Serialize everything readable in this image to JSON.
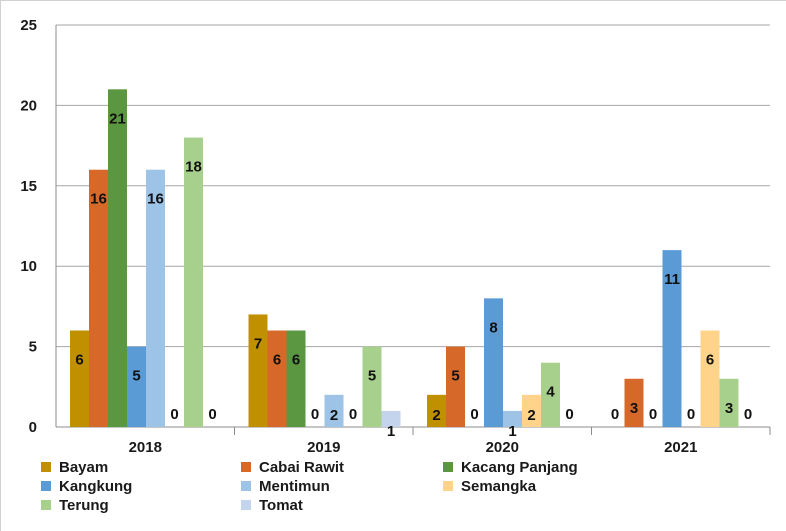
{
  "chart_data": {
    "type": "bar",
    "categories": [
      "2018",
      "2019",
      "2020",
      "2021"
    ],
    "ylim": [
      0,
      25
    ],
    "yticks": [
      0,
      5,
      10,
      15,
      20,
      25
    ],
    "grid": true,
    "legend_position": "bottom",
    "series": [
      {
        "name": "Bayam",
        "color": "#C09000",
        "values": [
          6,
          7,
          2,
          0
        ]
      },
      {
        "name": "Cabai Rawit",
        "color": "#D6692A",
        "values": [
          16,
          6,
          5,
          3
        ]
      },
      {
        "name": "Kacang Panjang",
        "color": "#5B9740",
        "values": [
          21,
          6,
          0,
          0
        ]
      },
      {
        "name": "Kangkung",
        "color": "#5B9BD5",
        "values": [
          5,
          0,
          8,
          11
        ]
      },
      {
        "name": "Mentimun",
        "color": "#9DC3E6",
        "values": [
          16,
          2,
          1,
          0
        ]
      },
      {
        "name": "Semangka",
        "color": "#FFD48A",
        "values": [
          0,
          0,
          2,
          6
        ]
      },
      {
        "name": "Terung",
        "color": "#A8D08D",
        "values": [
          18,
          5,
          4,
          3
        ]
      },
      {
        "name": "Tomat",
        "color": "#C4D4EC",
        "values": [
          0,
          1,
          0,
          0
        ]
      }
    ]
  }
}
